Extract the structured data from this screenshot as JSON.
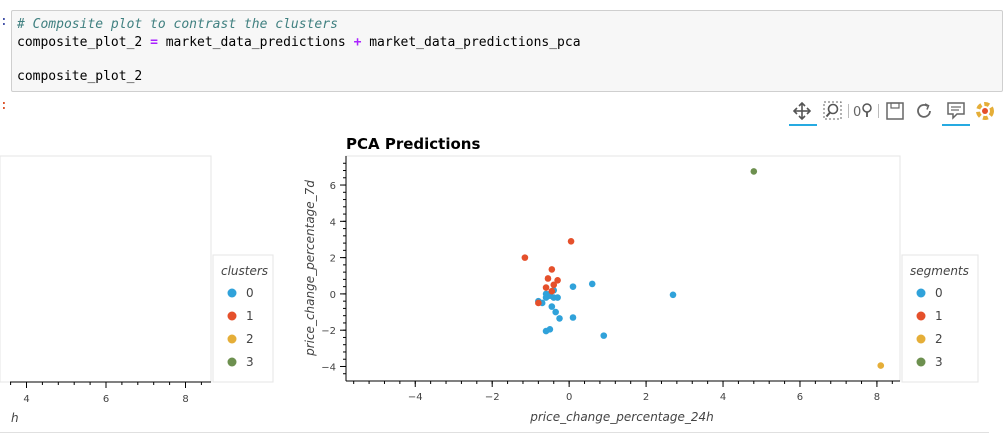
{
  "cell": {
    "in_prompt": ":",
    "out_prompt": ":",
    "code_comment": "# Composite plot to contrast the clusters",
    "code_line2_lhs": "composite_plot_2",
    "code_eq": "=",
    "code_term1": "market_data_predictions",
    "code_plus": "+",
    "code_term2": "market_data_predictions_pca",
    "code_line3": "composite_plot_2"
  },
  "toolbar": {
    "icons": [
      "pan-icon",
      "box-zoom-icon",
      "wheel-zoom-icon",
      "save-icon",
      "reset-icon",
      "hover-icon",
      "bokeh-logo-icon"
    ],
    "wheel_zoom_glyph": "0⚲",
    "active_color": "#26aae1"
  },
  "left_plot": {
    "legend_title": "clusters",
    "legend_items": [
      "0",
      "1",
      "2",
      "3"
    ],
    "x_tick_labels": [
      "4",
      "6",
      "8"
    ],
    "x_label_partial": "h"
  },
  "colors": {
    "seg0": "#30a2da",
    "seg1": "#e5502b",
    "seg2": "#e5ae38",
    "seg3": "#6d904f"
  },
  "chart_data": {
    "type": "scatter",
    "title": "PCA Predictions",
    "xlabel": "price_change_percentage_24h",
    "ylabel": "price_change_percentage_7d",
    "xlim": [
      -5.8,
      8.6
    ],
    "ylim": [
      -4.8,
      7.6
    ],
    "x_ticks": [
      -4,
      -2,
      0,
      2,
      4,
      6,
      8
    ],
    "y_ticks": [
      -4,
      -2,
      0,
      2,
      4,
      6
    ],
    "legend_title": "segments",
    "legend_placement": "right",
    "series": [
      {
        "name": "0",
        "color": "#30a2da",
        "points": [
          [
            -0.8,
            -0.4
          ],
          [
            -0.7,
            -0.5
          ],
          [
            -0.6,
            -0.2
          ],
          [
            -0.5,
            -0.1
          ],
          [
            -0.4,
            -0.2
          ],
          [
            -0.3,
            -0.2
          ],
          [
            -0.5,
            0.0
          ],
          [
            -0.4,
            0.2
          ],
          [
            -0.6,
            0.0
          ],
          [
            -0.45,
            -0.7
          ],
          [
            -0.35,
            -1.0
          ],
          [
            -0.25,
            -1.35
          ],
          [
            -0.6,
            -2.05
          ],
          [
            -0.5,
            -1.95
          ],
          [
            0.1,
            -1.3
          ],
          [
            0.1,
            0.4
          ],
          [
            0.6,
            0.55
          ],
          [
            0.9,
            -2.3
          ],
          [
            2.7,
            -0.05
          ]
        ]
      },
      {
        "name": "1",
        "color": "#e5502b",
        "points": [
          [
            -1.15,
            2.0
          ],
          [
            0.05,
            2.9
          ],
          [
            -0.45,
            1.35
          ],
          [
            -0.55,
            0.85
          ],
          [
            -0.3,
            0.75
          ],
          [
            -0.4,
            0.5
          ],
          [
            -0.6,
            0.35
          ],
          [
            -0.45,
            0.15
          ],
          [
            -0.8,
            -0.5
          ]
        ]
      },
      {
        "name": "2",
        "color": "#e5ae38",
        "points": [
          [
            8.1,
            -3.95
          ]
        ]
      },
      {
        "name": "3",
        "color": "#6d904f",
        "points": [
          [
            4.8,
            6.75
          ]
        ]
      }
    ]
  }
}
